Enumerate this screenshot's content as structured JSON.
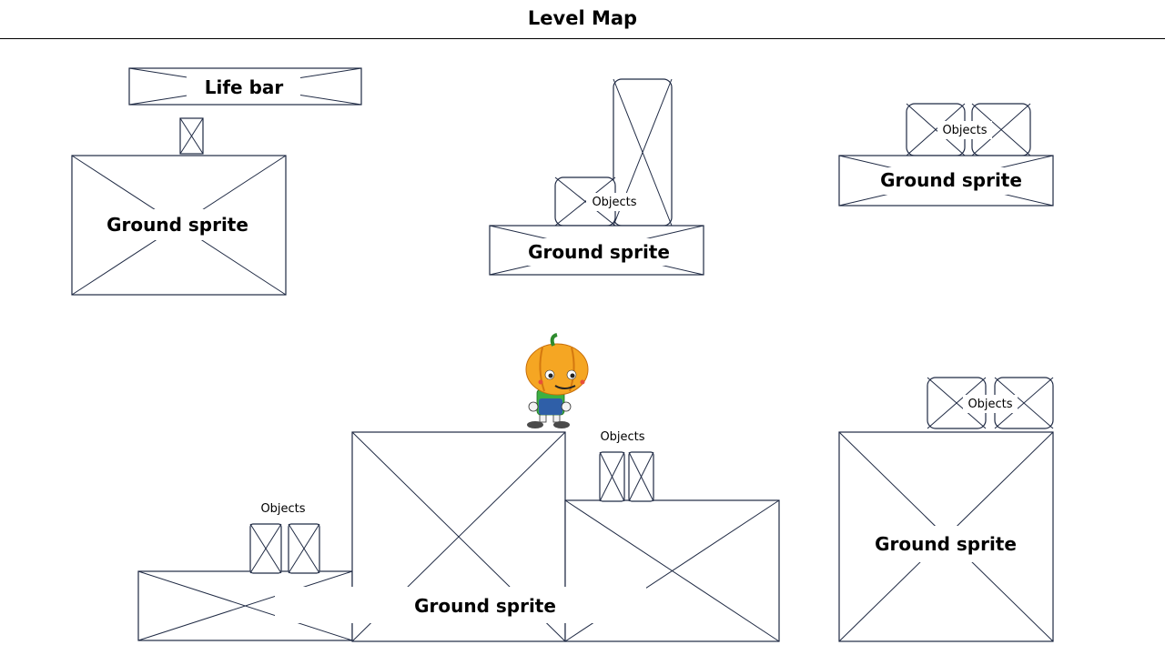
{
  "title": "Level Map",
  "labels": {
    "life_bar": "Life bar",
    "ground_sprite": "Ground sprite",
    "objects": "Objects"
  },
  "colors": {
    "stroke": "#1f2a44",
    "pumpkin": "#f5a623",
    "pumpkin_dark": "#d4780f",
    "stem": "#2e8b2e",
    "shirt": "#3cb043",
    "overalls": "#2f5fa8"
  }
}
